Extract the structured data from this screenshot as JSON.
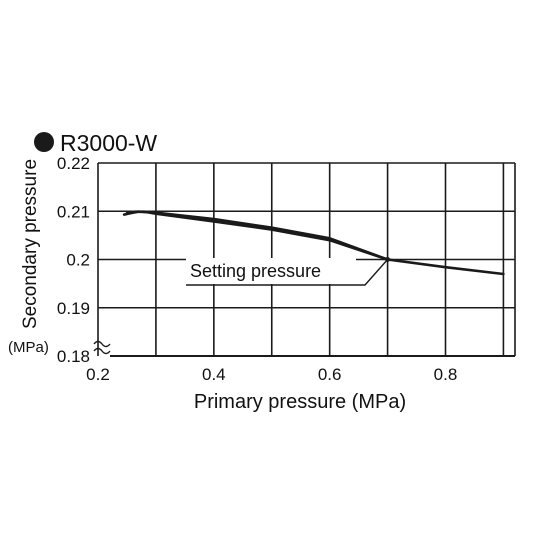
{
  "chart_data": {
    "type": "line",
    "title": "R3000-W",
    "xlabel": "Primary pressure (MPa)",
    "ylabel": "Secondary pressure",
    "ylabel_unit": "(MPa)",
    "xlim": [
      0.2,
      0.92
    ],
    "ylim": [
      0.18,
      0.22
    ],
    "xticks": [
      0.2,
      0.4,
      0.6,
      0.8
    ],
    "xtick_labels": [
      "0.2",
      "0.4",
      "0.6",
      "0.8"
    ],
    "yticks": [
      0.18,
      0.19,
      0.2,
      0.21,
      0.22
    ],
    "ytick_labels": [
      "0.18",
      "0.19",
      "0.2",
      "0.21",
      "0.22"
    ],
    "grid": true,
    "annotation": {
      "text": "Setting pressure",
      "x": 0.7,
      "y": 0.2
    },
    "series": [
      {
        "x": [
          0.245,
          0.26,
          0.27,
          0.285,
          0.3,
          0.4,
          0.5,
          0.6,
          0.7
        ],
        "y": [
          0.2093,
          0.2097,
          0.2099,
          0.2098,
          0.2095,
          0.2079,
          0.2062,
          0.204,
          0.2
        ]
      },
      {
        "x": [
          0.25,
          0.265,
          0.28,
          0.3,
          0.4,
          0.5,
          0.6,
          0.7,
          0.8,
          0.9
        ],
        "y": [
          0.2096,
          0.2099,
          0.2099,
          0.2097,
          0.2084,
          0.2066,
          0.2044,
          0.2,
          0.1984,
          0.197
        ]
      }
    ],
    "colors": {
      "line": "#1a1a1a",
      "grid": "#1a1a1a",
      "marker": "#1a1a1a"
    }
  }
}
